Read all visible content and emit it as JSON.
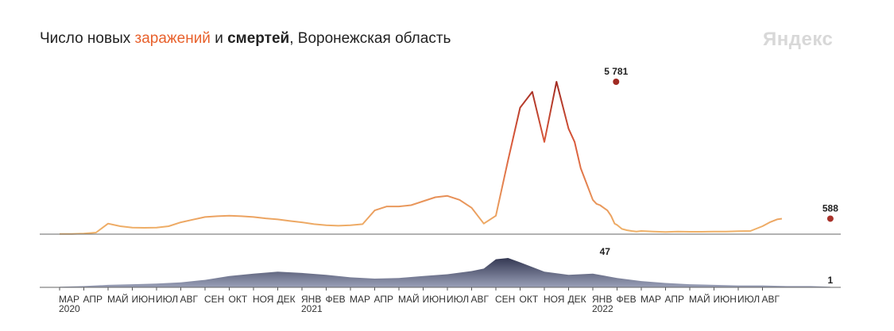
{
  "header": {
    "title_prefix": "Число новых ",
    "title_infections": "заражений",
    "title_and": " и ",
    "title_deaths": "смертей",
    "title_suffix": ", Воронежская область",
    "brand": "Яндекс"
  },
  "colors": {
    "infections_low": "#f0b46a",
    "infections_high": "#a02a22",
    "deaths_low": "#9aa0b8",
    "deaths_high": "#2b2f4a",
    "axis": "#555555"
  },
  "chart_data": [
    {
      "type": "line",
      "name": "infections",
      "x_months": [
        0,
        0.5,
        1,
        1.5,
        2,
        2.5,
        3,
        3.5,
        4,
        4.5,
        5,
        5.5,
        6,
        6.5,
        7,
        7.5,
        8,
        8.5,
        9,
        9.5,
        10,
        10.5,
        11,
        11.5,
        12,
        12.5,
        13,
        13.5,
        14,
        14.5,
        15,
        15.5,
        16,
        16.5,
        17,
        17.5,
        18,
        18.5,
        19,
        19.5,
        20,
        20.5,
        21,
        21.25,
        21.5,
        21.75,
        22,
        22.15,
        22.3,
        22.45,
        22.6,
        22.75,
        22.9,
        23,
        23.2,
        23.4,
        23.6,
        23.8,
        24,
        24.5,
        25,
        25.5,
        26,
        26.5,
        27,
        27.5,
        28,
        28.5,
        29,
        29.3,
        29.6,
        29.8
      ],
      "y": [
        5,
        10,
        20,
        60,
        400,
        300,
        250,
        240,
        250,
        300,
        450,
        550,
        650,
        680,
        700,
        680,
        650,
        600,
        560,
        500,
        450,
        380,
        340,
        320,
        340,
        380,
        900,
        1050,
        1050,
        1100,
        1250,
        1400,
        1450,
        1300,
        1000,
        400,
        700,
        2800,
        4800,
        5400,
        3500,
        5781,
        4000,
        3500,
        2500,
        1900,
        1300,
        1150,
        1100,
        1000,
        900,
        700,
        400,
        350,
        200,
        150,
        120,
        100,
        120,
        100,
        80,
        100,
        90,
        90,
        100,
        100,
        110,
        120,
        300,
        450,
        560,
        588
      ],
      "annotations": [
        {
          "label": "5 781",
          "x_month": 22.96,
          "y": 5781
        },
        {
          "label": "588",
          "x_month": 31.8,
          "y": 588
        }
      ]
    },
    {
      "type": "area",
      "name": "deaths",
      "x_months": [
        0,
        1,
        2,
        3,
        4,
        5,
        6,
        7,
        8,
        9,
        10,
        11,
        12,
        13,
        14,
        15,
        16,
        17,
        17.5,
        18,
        18.5,
        19,
        20,
        21,
        22,
        23,
        24,
        25,
        26,
        27,
        28,
        29,
        30,
        31,
        31.8
      ],
      "y": [
        1,
        2,
        4,
        5,
        6,
        8,
        12,
        18,
        22,
        25,
        23,
        20,
        16,
        14,
        15,
        18,
        21,
        26,
        30,
        45,
        47,
        40,
        25,
        20,
        22,
        15,
        10,
        7,
        5,
        4,
        3,
        3,
        2,
        2,
        1
      ],
      "annotations": [
        {
          "label": "47",
          "x_month": 22.5,
          "y": 47
        },
        {
          "label": "1",
          "x_month": 31.8,
          "y": 1
        }
      ]
    }
  ],
  "x_axis": {
    "months": [
      "МАР",
      "АПР",
      "МАЙ",
      "ИЮН",
      "ИЮЛ",
      "АВГ",
      "СЕН",
      "ОКТ",
      "НОЯ",
      "ДЕК",
      "ЯНВ",
      "ФЕВ",
      "МАР",
      "АПР",
      "МАЙ",
      "ИЮН",
      "ИЮЛ",
      "АВГ",
      "СЕН",
      "ОКТ",
      "НОЯ",
      "ДЕК",
      "ЯНВ",
      "ФЕВ",
      "МАР",
      "АПР",
      "МАЙ",
      "ИЮН",
      "ИЮЛ",
      "АВГ"
    ],
    "years": [
      {
        "label": "2020",
        "index": 0
      },
      {
        "label": "2021",
        "index": 10
      },
      {
        "label": "2022",
        "index": 22
      }
    ]
  }
}
